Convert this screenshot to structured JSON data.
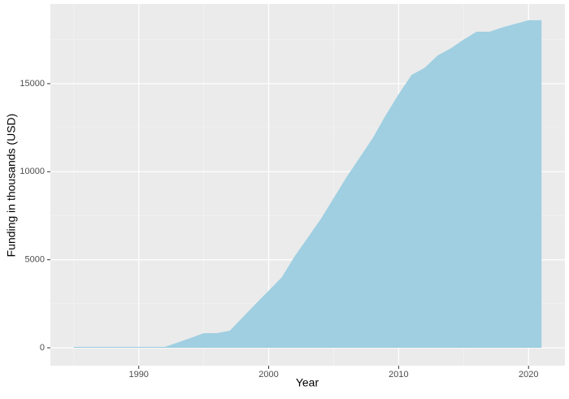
{
  "chart_data": {
    "type": "area",
    "x_label": "Year",
    "y_label": "Funding in thousands (USD)",
    "x": [
      1985,
      1986,
      1987,
      1988,
      1989,
      1990,
      1991,
      1992,
      1993,
      1994,
      1995,
      1996,
      1997,
      1998,
      1999,
      2000,
      2001,
      2002,
      2003,
      2004,
      2005,
      2006,
      2007,
      2008,
      2009,
      2010,
      2011,
      2012,
      2013,
      2014,
      2015,
      2016,
      2017,
      2018,
      2019,
      2020,
      2021
    ],
    "values": [
      50,
      50,
      50,
      50,
      50,
      50,
      50,
      50,
      300,
      560,
      830,
      830,
      970,
      1730,
      2500,
      3250,
      4000,
      5200,
      6250,
      7300,
      8500,
      9700,
      10800,
      11900,
      13200,
      14400,
      15500,
      15900,
      16600,
      17000,
      17500,
      17950,
      17950,
      18200,
      18400,
      18600,
      18600
    ],
    "color": "#9fcfe1",
    "xlim": [
      1983.2,
      2022.8
    ],
    "ylim": [
      -1015,
      19520
    ],
    "xticks": [
      1990,
      2000,
      2010,
      2020
    ],
    "yticks": [
      0,
      5000,
      10000,
      15000
    ],
    "xminor": [
      1985,
      1995,
      2005,
      2015
    ],
    "yminor": [
      2500,
      7500,
      12500,
      17500
    ],
    "grid": true
  }
}
